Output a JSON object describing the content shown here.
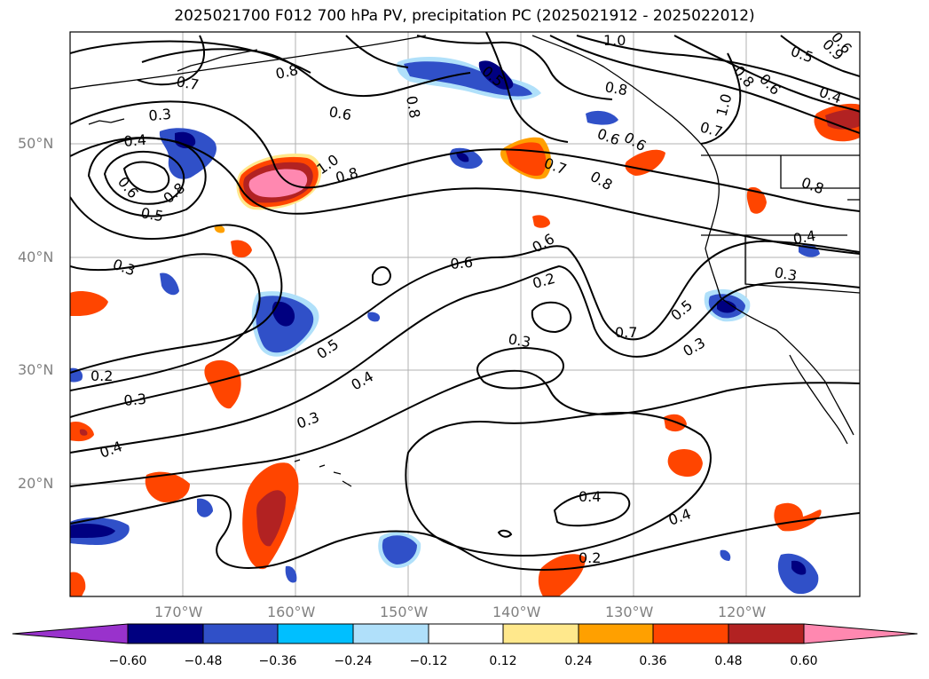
{
  "title": "2025021700 F012 700 hPa PV, precipitation PC (2025021912 - 2025022012)",
  "lat_labels": [
    "50°N",
    "40°N",
    "30°N",
    "20°N"
  ],
  "lon_labels": [
    "170°W",
    "160°W",
    "150°W",
    "140°W",
    "130°W",
    "120°W"
  ],
  "colorbar": {
    "tick_labels": [
      "−0.60",
      "−0.48",
      "−0.36",
      "−0.24",
      "−0.12",
      "0.12",
      "0.24",
      "0.36",
      "0.48",
      "0.60"
    ],
    "colors": [
      "#9932cc",
      "#000080",
      "#3050c8",
      "#00bfff",
      "#b0e0fa",
      "#ffffff",
      "#ffe88c",
      "#ffa000",
      "#ff4500",
      "#b22222",
      "#ff88b0"
    ]
  },
  "contour_labels": [
    {
      "text": "0.7"
    },
    {
      "text": "0.8"
    },
    {
      "text": "0.8"
    },
    {
      "text": "0.5"
    },
    {
      "text": "1.0"
    },
    {
      "text": "0.9"
    },
    {
      "text": "0.6"
    },
    {
      "text": "0.3"
    },
    {
      "text": "0.4"
    },
    {
      "text": "0.6"
    },
    {
      "text": "0.5"
    },
    {
      "text": "0.8"
    },
    {
      "text": "1.0"
    },
    {
      "text": "0.8"
    },
    {
      "text": "0.7"
    },
    {
      "text": "0.8"
    },
    {
      "text": "0.6"
    },
    {
      "text": "0.6"
    },
    {
      "text": "0.2"
    },
    {
      "text": "0.3"
    },
    {
      "text": "0.7"
    },
    {
      "text": "0.5"
    },
    {
      "text": "0.3"
    },
    {
      "text": "0.5"
    },
    {
      "text": "0.4"
    },
    {
      "text": "0.3"
    },
    {
      "text": "0.2"
    },
    {
      "text": "0.3"
    },
    {
      "text": "0.4"
    },
    {
      "text": "0.4"
    },
    {
      "text": "0.4"
    },
    {
      "text": "0.2"
    },
    {
      "text": "0.3"
    },
    {
      "text": "1.0"
    },
    {
      "text": "0.5"
    },
    {
      "text": "0.6"
    },
    {
      "text": "0.8"
    },
    {
      "text": "0.7"
    },
    {
      "text": "0.4"
    },
    {
      "text": "0.3"
    },
    {
      "text": "0.8"
    },
    {
      "text": "0.6"
    },
    {
      "text": "0.4"
    },
    {
      "text": "0.6"
    },
    {
      "text": "0.8"
    },
    {
      "text": "0.6"
    }
  ]
}
